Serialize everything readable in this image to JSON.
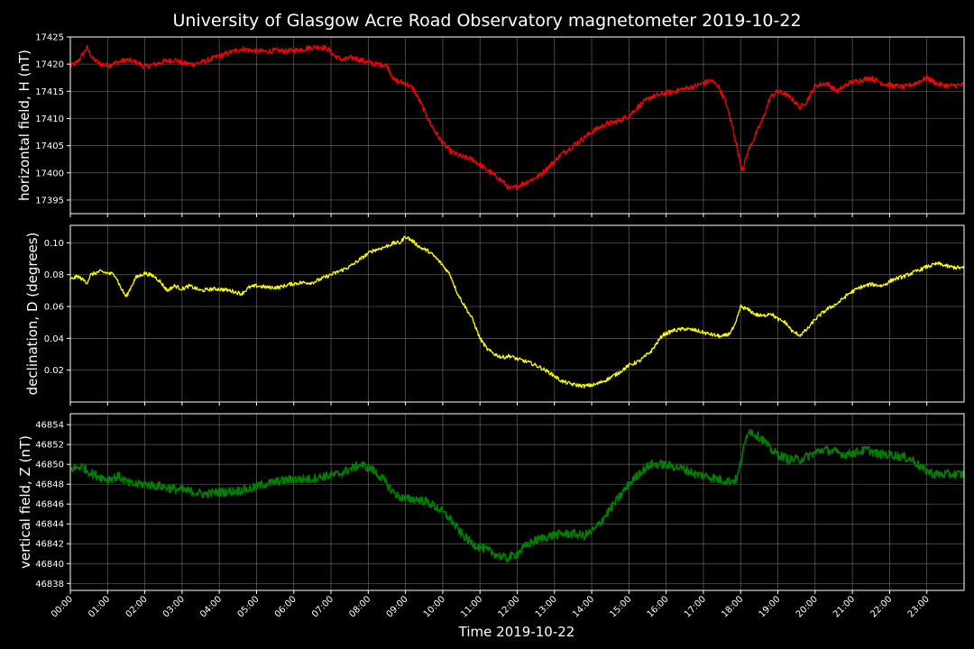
{
  "figure": {
    "title": "University of Glasgow Acre Road Observatory magnetometer 2019-10-22",
    "background": "#000000",
    "text_color": "#ffffff",
    "grid_color": "#808080"
  },
  "chart_data": [
    {
      "type": "line",
      "ylabel": "horizontal field, H (nT)",
      "xlabel": "",
      "color": "#ff0000",
      "xlim": [
        0,
        24
      ],
      "ylim": [
        17392.5,
        17425
      ],
      "yticks": [
        "17395",
        "17400",
        "17405",
        "17410",
        "17415",
        "17420",
        "17425"
      ],
      "x_hours": [
        0,
        0.2,
        0.45,
        0.6,
        0.8,
        1.0,
        1.2,
        1.5,
        1.8,
        2.0,
        2.3,
        2.5,
        2.8,
        3.0,
        3.3,
        3.6,
        3.8,
        4.0,
        4.3,
        4.6,
        4.9,
        5.2,
        5.5,
        5.8,
        6.1,
        6.4,
        6.7,
        6.9,
        7.1,
        7.3,
        7.6,
        7.9,
        8.2,
        8.5,
        8.7,
        9.0,
        9.2,
        9.4,
        9.6,
        9.8,
        10.0,
        10.2,
        10.5,
        10.8,
        11.0,
        11.3,
        11.6,
        11.8,
        12.0,
        12.3,
        12.6,
        12.9,
        13.2,
        13.5,
        13.8,
        14.1,
        14.4,
        14.7,
        15.0,
        15.3,
        15.6,
        15.9,
        16.2,
        16.5,
        16.8,
        17.0,
        17.2,
        17.4,
        17.6,
        17.8,
        17.95,
        18.05,
        18.2,
        18.4,
        18.6,
        18.8,
        19.0,
        19.2,
        19.4,
        19.6,
        19.8,
        20.0,
        20.3,
        20.6,
        20.9,
        21.2,
        21.5,
        21.8,
        22.1,
        22.4,
        22.7,
        23.0,
        23.3,
        23.6,
        24.0
      ],
      "values": [
        17419.5,
        17420.5,
        17423,
        17421,
        17420,
        17419.8,
        17420.2,
        17420.8,
        17420.3,
        17419.5,
        17420,
        17420.5,
        17420.8,
        17420.2,
        17420,
        17420.5,
        17421,
        17421.5,
        17422.2,
        17422.8,
        17422.5,
        17422.3,
        17422.5,
        17422.4,
        17422.6,
        17423,
        17423.2,
        17422.8,
        17421.5,
        17420.8,
        17421.2,
        17420.5,
        17420,
        17419.8,
        17417,
        17416.5,
        17415.5,
        17413,
        17410,
        17407.5,
        17405.5,
        17404,
        17403,
        17402.5,
        17401.5,
        17400,
        17398.5,
        17397,
        17397.5,
        17398.5,
        17399.5,
        17401.5,
        17403.5,
        17405,
        17406.5,
        17408,
        17409,
        17409.5,
        17410.5,
        17412.5,
        17414,
        17414.5,
        17415,
        17415.5,
        17416,
        17416.5,
        17417,
        17416,
        17413,
        17408,
        17403,
        17400.5,
        17404,
        17407,
        17410,
        17414,
        17415,
        17414.5,
        17413.5,
        17412,
        17413.5,
        17416,
        17416.5,
        17415,
        17416.5,
        17417,
        17417.5,
        17416.5,
        17416,
        17415.8,
        17416.5,
        17417.5,
        17416.3,
        17416,
        17416.2
      ],
      "noise": 0.5
    },
    {
      "type": "line",
      "ylabel": "declination, D (degrees)",
      "xlabel": "",
      "color": "#ffff00",
      "xlim": [
        0,
        24
      ],
      "ylim": [
        0.0,
        0.111
      ],
      "yticks": [
        "0.02",
        "0.04",
        "0.06",
        "0.08",
        "0.10"
      ],
      "x_hours": [
        0,
        0.2,
        0.45,
        0.55,
        0.8,
        1.0,
        1.2,
        1.35,
        1.5,
        1.75,
        2.0,
        2.25,
        2.4,
        2.6,
        2.8,
        3.0,
        3.2,
        3.5,
        3.8,
        4.0,
        4.3,
        4.6,
        4.8,
        5.0,
        5.3,
        5.6,
        5.9,
        6.2,
        6.5,
        6.8,
        7.0,
        7.2,
        7.5,
        7.8,
        8.1,
        8.4,
        8.7,
        8.85,
        9.0,
        9.2,
        9.4,
        9.6,
        9.8,
        10.0,
        10.2,
        10.4,
        10.6,
        10.8,
        11.0,
        11.2,
        11.4,
        11.6,
        11.8,
        12.0,
        12.3,
        12.6,
        12.9,
        13.2,
        13.5,
        13.8,
        14.1,
        14.4,
        14.7,
        15.0,
        15.3,
        15.6,
        15.9,
        16.2,
        16.5,
        16.8,
        17.1,
        17.3,
        17.5,
        17.7,
        17.85,
        18.0,
        18.2,
        18.4,
        18.6,
        18.8,
        19.0,
        19.2,
        19.4,
        19.6,
        19.8,
        20.0,
        20.3,
        20.6,
        20.9,
        21.2,
        21.5,
        21.8,
        22.1,
        22.4,
        22.7,
        23.0,
        23.3,
        23.6,
        24.0
      ],
      "values": [
        0.077,
        0.079,
        0.075,
        0.08,
        0.082,
        0.081,
        0.08,
        0.072,
        0.066,
        0.078,
        0.081,
        0.079,
        0.076,
        0.07,
        0.073,
        0.071,
        0.073,
        0.07,
        0.071,
        0.071,
        0.07,
        0.068,
        0.072,
        0.073,
        0.072,
        0.072,
        0.074,
        0.075,
        0.075,
        0.078,
        0.08,
        0.082,
        0.085,
        0.09,
        0.095,
        0.097,
        0.1,
        0.1,
        0.104,
        0.101,
        0.097,
        0.095,
        0.091,
        0.086,
        0.08,
        0.068,
        0.06,
        0.052,
        0.04,
        0.033,
        0.03,
        0.028,
        0.029,
        0.027,
        0.025,
        0.022,
        0.018,
        0.013,
        0.011,
        0.01,
        0.011,
        0.014,
        0.018,
        0.023,
        0.026,
        0.032,
        0.042,
        0.045,
        0.046,
        0.045,
        0.043,
        0.042,
        0.041,
        0.043,
        0.048,
        0.06,
        0.058,
        0.055,
        0.054,
        0.056,
        0.052,
        0.05,
        0.044,
        0.042,
        0.046,
        0.052,
        0.058,
        0.062,
        0.068,
        0.072,
        0.074,
        0.073,
        0.077,
        0.079,
        0.082,
        0.085,
        0.087,
        0.085,
        0.084
      ],
      "noise": 0.0012
    },
    {
      "type": "line",
      "ylabel": "vertical field, Z (nT)",
      "xlabel": "Time 2019-10-22",
      "color": "#008000",
      "xlim": [
        0,
        24
      ],
      "ylim": [
        46837.3,
        46855.1
      ],
      "yticks": [
        "46838",
        "46840",
        "46842",
        "46844",
        "46846",
        "46848",
        "46850",
        "46852",
        "46854"
      ],
      "xticks": [
        "00:00",
        "01:00",
        "02:00",
        "03:00",
        "04:00",
        "05:00",
        "06:00",
        "07:00",
        "08:00",
        "09:00",
        "10:00",
        "11:00",
        "12:00",
        "13:00",
        "14:00",
        "15:00",
        "16:00",
        "17:00",
        "18:00",
        "19:00",
        "20:00",
        "21:00",
        "22:00",
        "23:00"
      ],
      "x_hours": [
        0,
        0.3,
        0.6,
        1.0,
        1.3,
        1.6,
        2.0,
        2.4,
        2.8,
        3.2,
        3.6,
        4.0,
        4.4,
        4.8,
        5.2,
        5.6,
        6.0,
        6.4,
        6.8,
        7.2,
        7.5,
        7.8,
        8.1,
        8.4,
        8.6,
        8.8,
        9.0,
        9.3,
        9.6,
        9.9,
        10.2,
        10.5,
        10.8,
        11.1,
        11.4,
        11.7,
        12.0,
        12.3,
        12.6,
        12.9,
        13.2,
        13.5,
        13.8,
        14.1,
        14.4,
        14.7,
        15.0,
        15.3,
        15.6,
        15.9,
        16.2,
        16.5,
        16.8,
        17.1,
        17.4,
        17.7,
        17.9,
        18.05,
        18.2,
        18.4,
        18.6,
        18.8,
        19.0,
        19.3,
        19.6,
        19.9,
        20.2,
        20.5,
        20.8,
        21.1,
        21.4,
        21.7,
        22.0,
        22.3,
        22.6,
        22.9,
        23.2,
        23.5,
        24.0
      ],
      "values": [
        46849.5,
        46849.8,
        46849,
        46848.5,
        46848.8,
        46848,
        46848,
        46847.8,
        46847.5,
        46847.3,
        46847,
        46847.2,
        46847.3,
        46847.5,
        46848,
        46848.3,
        46848.5,
        46848.5,
        46848.8,
        46849,
        46849.5,
        46850,
        46849.5,
        46848.5,
        46847.5,
        46846.8,
        46846.5,
        46846.5,
        46846.2,
        46845.5,
        46844.5,
        46843,
        46842,
        46841.5,
        46841,
        46840.5,
        46841,
        46842,
        46842.5,
        46842.8,
        46843,
        46843,
        46842.8,
        46843.5,
        46845,
        46846.5,
        46848,
        46849.2,
        46850,
        46850,
        46849.8,
        46849.5,
        46849,
        46848.8,
        46848.5,
        46848.3,
        46848.5,
        46851,
        46853.5,
        46853,
        46852.5,
        46851.5,
        46851,
        46850.5,
        46850.5,
        46851,
        46851.5,
        46851.3,
        46851,
        46851.2,
        46851.5,
        46851,
        46851,
        46850.8,
        46850.5,
        46849.5,
        46849,
        46849,
        46849
      ],
      "noise": 0.45
    }
  ]
}
